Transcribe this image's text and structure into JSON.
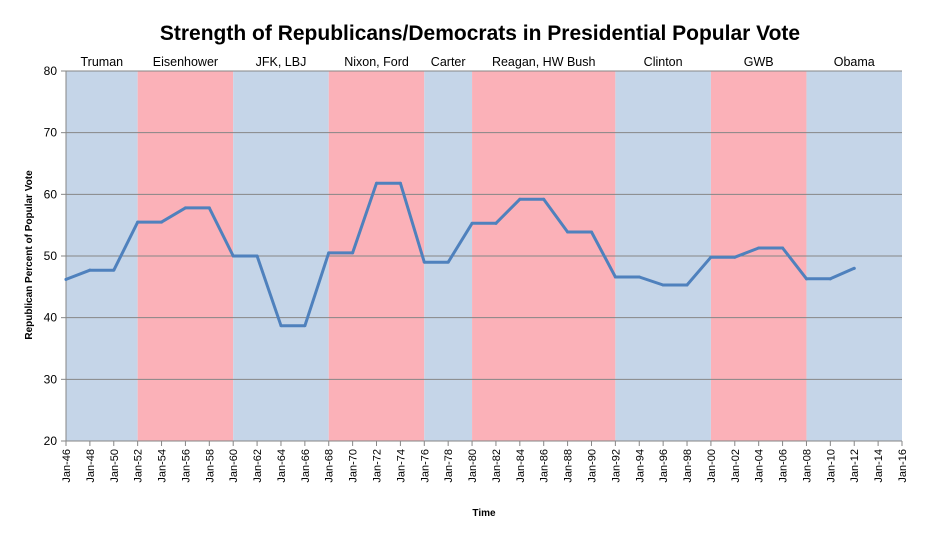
{
  "chart_data": {
    "type": "line",
    "title": "Strength of Republicans/Democrats in Presidential Popular Vote",
    "xlabel": "Time",
    "ylabel": "Republican  Percent of Popular Vote",
    "ylim": [
      20,
      80
    ],
    "yticks": [
      "20",
      "30",
      "40",
      "50",
      "60",
      "70",
      "80"
    ],
    "grid": true,
    "x_ticks": [
      "Jan-46",
      "Jan-48",
      "Jan-50",
      "Jan-52",
      "Jan-54",
      "Jan-56",
      "Jan-58",
      "Jan-60",
      "Jan-62",
      "Jan-64",
      "Jan-66",
      "Jan-68",
      "Jan-70",
      "Jan-72",
      "Jan-74",
      "Jan-76",
      "Jan-78",
      "Jan-80",
      "Jan-82",
      "Jan-84",
      "Jan-86",
      "Jan-88",
      "Jan-90",
      "Jan-92",
      "Jan-94",
      "Jan-96",
      "Jan-98",
      "Jan-00",
      "Jan-02",
      "Jan-04",
      "Jan-06",
      "Jan-08",
      "Jan-10",
      "Jan-12",
      "Jan-14",
      "Jan-16"
    ],
    "x_range": [
      1946,
      2016
    ],
    "eras": [
      {
        "label": "Truman",
        "party": "D",
        "start": 1946,
        "end": 1952
      },
      {
        "label": "Eisenhower",
        "party": "R",
        "start": 1952,
        "end": 1960
      },
      {
        "label": "JFK, LBJ",
        "party": "D",
        "start": 1960,
        "end": 1968
      },
      {
        "label": "Nixon, Ford",
        "party": "R",
        "start": 1968,
        "end": 1976
      },
      {
        "label": "Carter",
        "party": "D",
        "start": 1976,
        "end": 1980
      },
      {
        "label": "Reagan, HW Bush",
        "party": "R",
        "start": 1980,
        "end": 1992
      },
      {
        "label": "Clinton",
        "party": "D",
        "start": 1992,
        "end": 2000
      },
      {
        "label": "GWB",
        "party": "R",
        "start": 2000,
        "end": 2008
      },
      {
        "label": "Obama",
        "party": "D",
        "start": 2008,
        "end": 2016
      }
    ],
    "colors": {
      "D": "#c5d5e8",
      "R": "#fbb1b8",
      "line": "#4f81bd",
      "grid": "#868686",
      "axis": "#868686"
    },
    "series": [
      {
        "x": [
          1946,
          1948,
          1950,
          1952,
          1954,
          1956,
          1958,
          1960,
          1962,
          1964,
          1966,
          1968,
          1970,
          1972,
          1974,
          1976,
          1978,
          1980,
          1982,
          1984,
          1986,
          1988,
          1990,
          1992,
          1994,
          1996,
          1998,
          2000,
          2002,
          2004,
          2006,
          2008,
          2010,
          2012
        ],
        "values": [
          46.2,
          47.7,
          47.7,
          55.5,
          55.5,
          57.8,
          57.8,
          50.0,
          50.0,
          38.7,
          38.7,
          50.5,
          50.5,
          61.8,
          61.8,
          49.0,
          49.0,
          55.3,
          55.3,
          59.2,
          59.2,
          53.9,
          53.9,
          46.6,
          46.6,
          45.3,
          45.3,
          49.8,
          49.8,
          51.3,
          51.3,
          46.3,
          46.3,
          48.0
        ]
      }
    ]
  }
}
